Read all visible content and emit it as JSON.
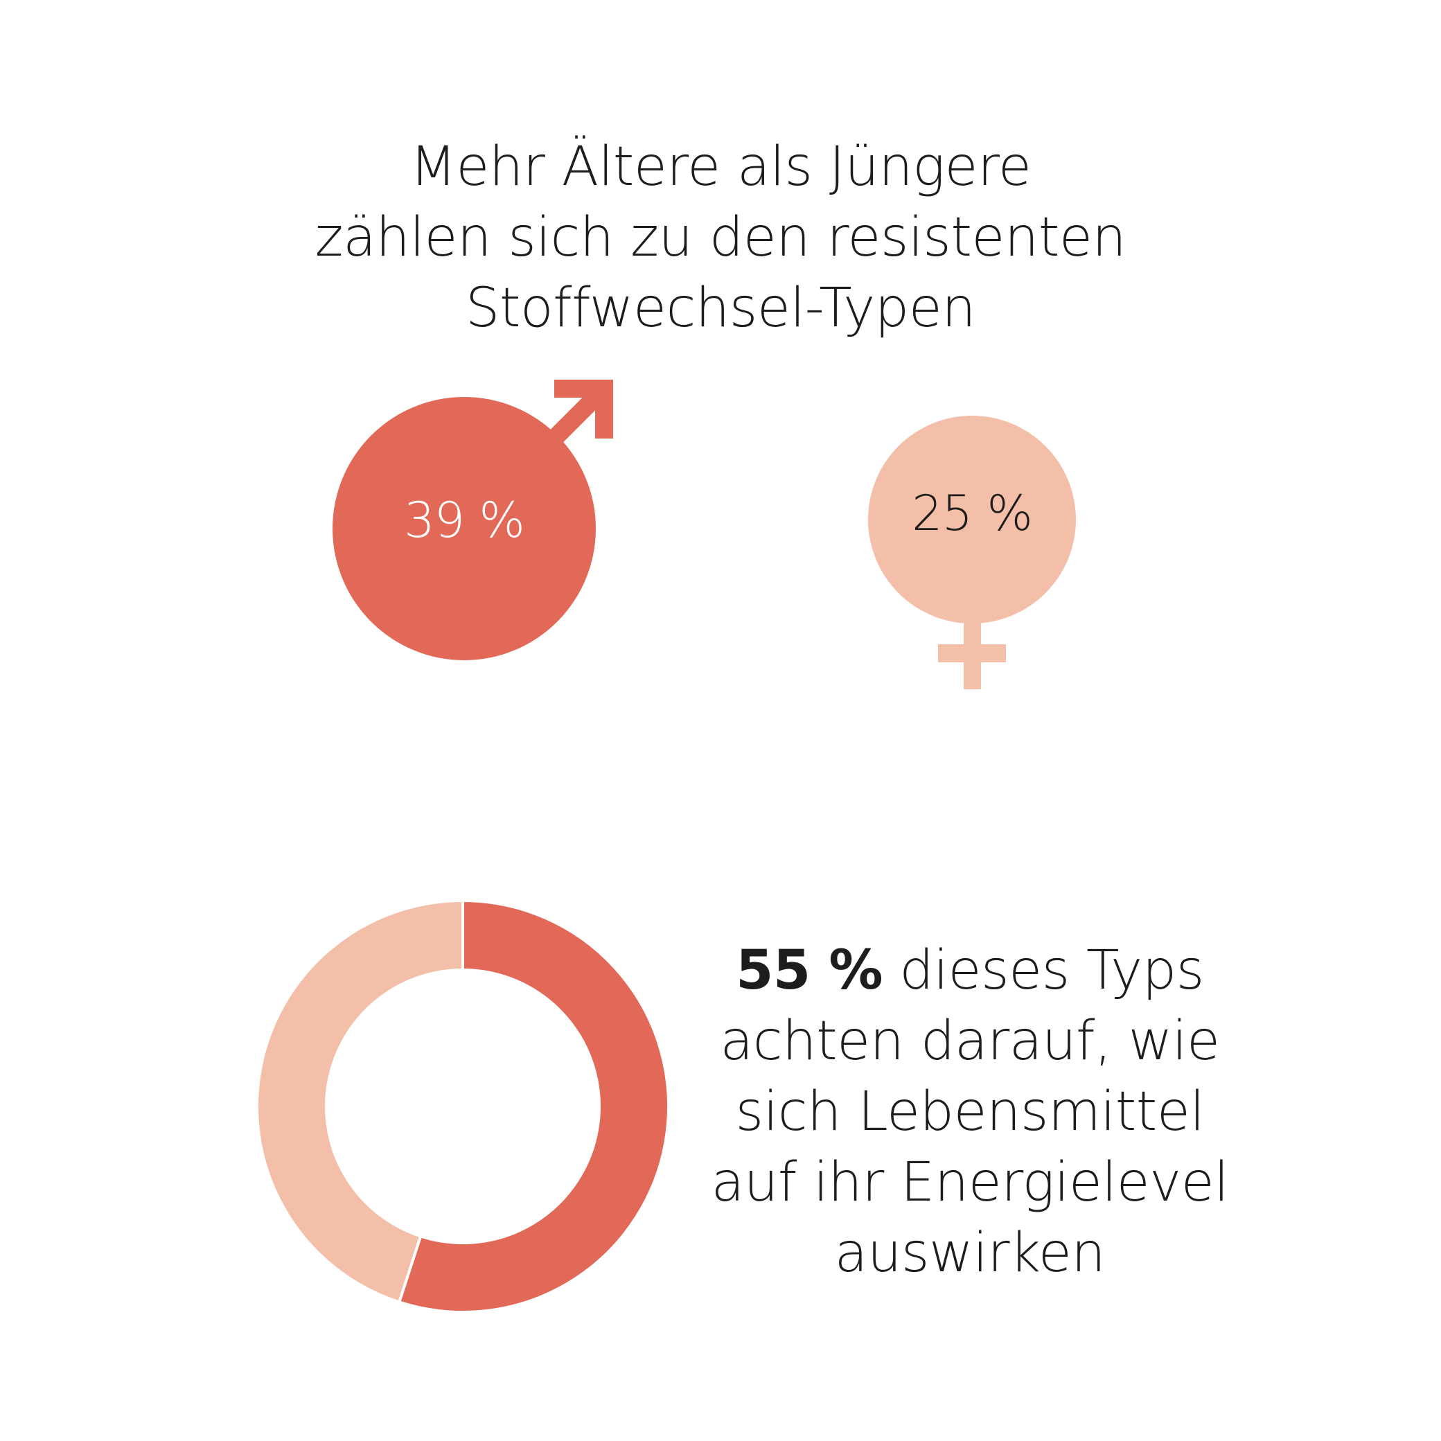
{
  "headline": {
    "line1": "Mehr Ältere als Jüngere",
    "line2": "zählen sich zu den resistenten",
    "line3": "Stoffwechsel-Typen"
  },
  "colors": {
    "accent": "#e26957",
    "light": "#f4bfa9",
    "text": "#1d1d1b",
    "white": "#ffffff"
  },
  "male": {
    "icon": "male-symbol-icon",
    "label": "39 %"
  },
  "female": {
    "icon": "female-symbol-icon",
    "label": "25 %"
  },
  "donut_text": {
    "highlight": "55 %",
    "rest_line1": " dieses Typs",
    "line2": "achten darauf, wie",
    "line3": "sich Lebensmittel",
    "line4": "auf ihr Energielevel",
    "line5": "auswirken"
  },
  "chart_data": [
    {
      "type": "bar",
      "categories": [
        "male",
        "female"
      ],
      "values": [
        39,
        25
      ],
      "unit": "%"
    },
    {
      "type": "pie",
      "donut": true,
      "categories": [
        "",
        ""
      ],
      "values": [
        55,
        45
      ],
      "colors": [
        "#e26957",
        "#f4bfa9"
      ]
    }
  ]
}
